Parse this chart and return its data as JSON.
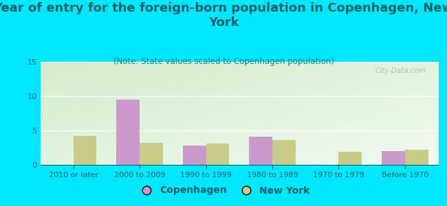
{
  "title": "Year of entry for the foreign-born population in Copenhagen, New\nYork",
  "subtitle": "(Note: State values scaled to Copenhagen population)",
  "categories": [
    "2010 or later",
    "2000 to 2009",
    "1990 to 1999",
    "1980 to 1989",
    "1970 to 1979",
    "Before 1970"
  ],
  "copenhagen": [
    0,
    9.5,
    2.8,
    4.1,
    0,
    2.0
  ],
  "new_york": [
    4.2,
    3.2,
    3.1,
    3.6,
    1.9,
    2.2
  ],
  "copenhagen_color": "#cc99cc",
  "new_york_color": "#c8cc88",
  "ylim": [
    0,
    15
  ],
  "yticks": [
    0,
    5,
    10,
    15
  ],
  "background_outer": "#00e8ff",
  "background_plot_tl": "#d4edcc",
  "background_plot_br": "#f0faf0",
  "grid_color": "#ffffff",
  "watermark": "City-Data.com",
  "title_fontsize": 13,
  "subtitle_fontsize": 8.5,
  "tick_fontsize": 8,
  "legend_fontsize": 10,
  "title_color": "#006060",
  "subtitle_color": "#008080",
  "tick_color": "#006060",
  "legend_color": "#006060"
}
